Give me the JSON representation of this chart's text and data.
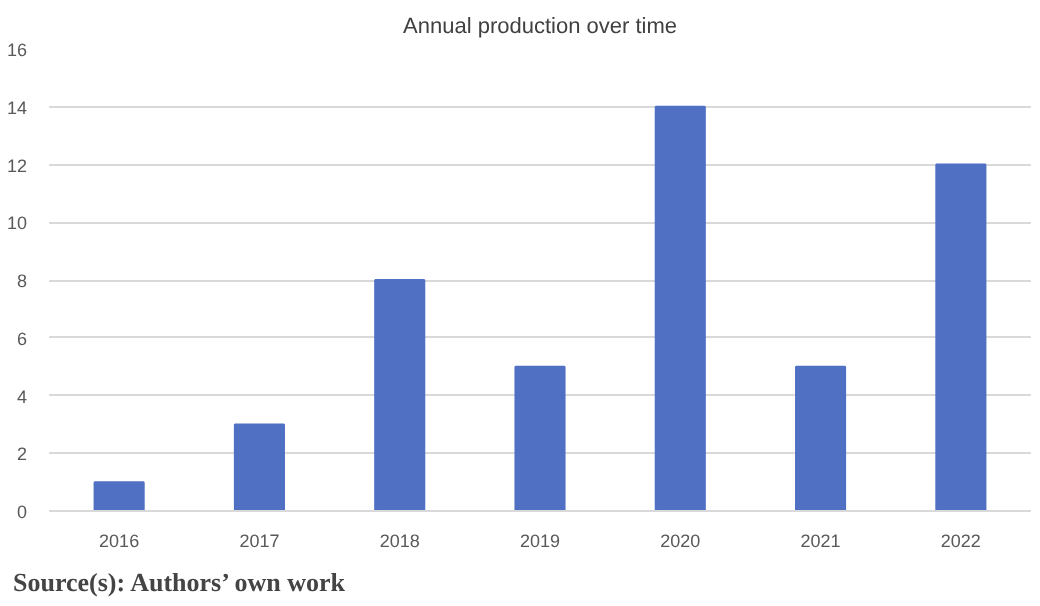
{
  "chart_data": {
    "type": "bar",
    "title": "Annual production over time",
    "categories": [
      "2016",
      "2017",
      "2018",
      "2019",
      "2020",
      "2021",
      "2022"
    ],
    "values": [
      1,
      3,
      8,
      5,
      14,
      5,
      12
    ],
    "color": "#5070c4",
    "ylim": [
      0,
      16
    ],
    "yticks": [
      0,
      2,
      4,
      6,
      8,
      10,
      12,
      14,
      16
    ],
    "grid": "y",
    "annotations": [
      "Source(s): Authors’ own work"
    ]
  }
}
